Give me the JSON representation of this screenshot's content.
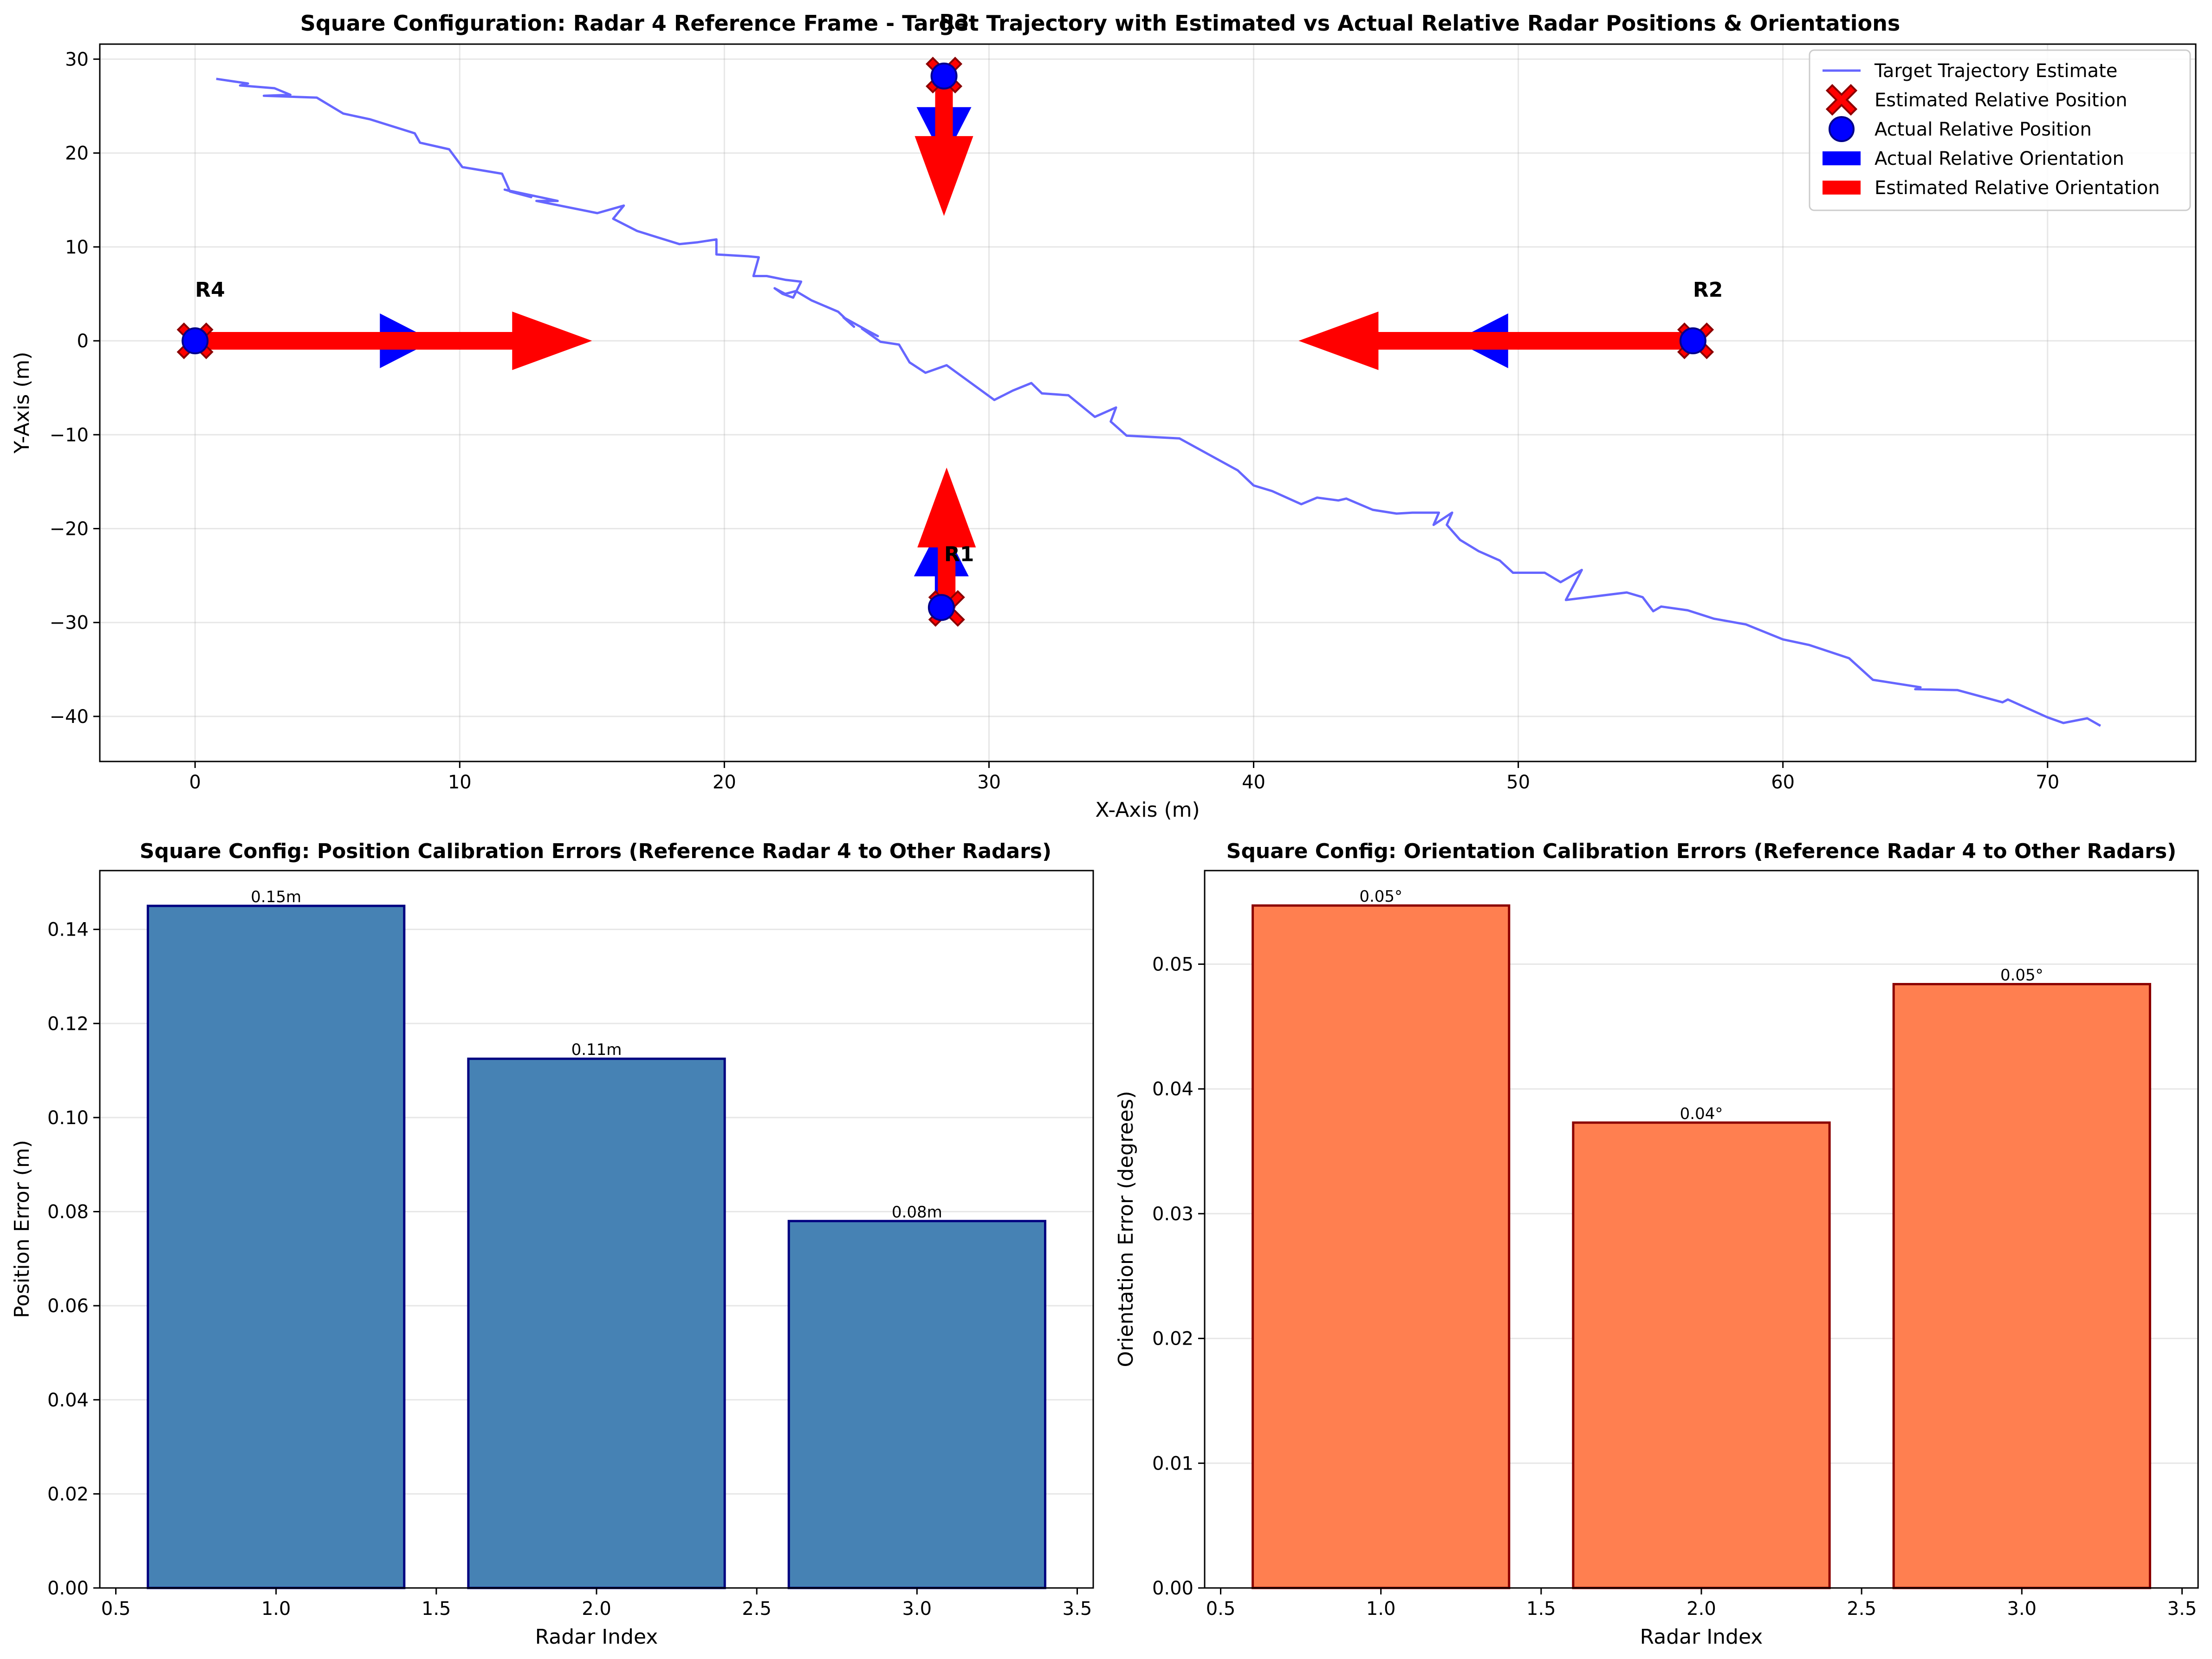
{
  "chart_data": [
    {
      "type": "line",
      "title": "Square Configuration: Radar 4 Reference Frame - Target Trajectory with Estimated vs Actual Relative Radar Positions & Orientations",
      "xlabel": "X-Axis (m)",
      "ylabel": "Y-Axis (m)",
      "xlim": [
        -3.6,
        75.6
      ],
      "ylim": [
        -44.8,
        31.6
      ],
      "xticks": [
        "0",
        "10",
        "20",
        "30",
        "40",
        "50",
        "60",
        "70"
      ],
      "xtick_values": [
        0,
        10,
        20,
        30,
        40,
        50,
        60,
        70
      ],
      "yticks": [
        "−40",
        "−30",
        "−20",
        "−10",
        "0",
        "10",
        "20",
        "30"
      ],
      "ytick_values": [
        -40,
        -30,
        -20,
        -10,
        0,
        10,
        20,
        30
      ],
      "grid": true,
      "legend_position": "top-right",
      "legend": [
        {
          "label": "Target Trajectory Estimate",
          "kind": "line",
          "color": "#6666ff"
        },
        {
          "label": "Estimated Relative Position",
          "kind": "cross",
          "color": "#ff0000"
        },
        {
          "label": "Actual Relative Position",
          "kind": "circle",
          "color": "#0000ff"
        },
        {
          "label": "Actual Relative Orientation",
          "kind": "patch",
          "color": "#0000ff"
        },
        {
          "label": "Estimated Relative Orientation",
          "kind": "patch",
          "color": "#ff0000"
        }
      ],
      "trajectory": {
        "color": "#6666ff",
        "x": [
          0.8,
          2.0,
          1.7,
          3.0,
          3.6,
          2.6,
          4.6,
          5.6,
          6.6,
          8.3,
          8.5,
          9.6,
          10.1,
          11.6,
          11.9,
          12.7,
          11.7,
          13.7,
          12.9,
          15.2,
          16.2,
          15.8,
          16.7,
          17.5,
          18.3,
          19.0,
          19.7,
          19.7,
          20.9,
          21.3,
          21.1,
          21.6,
          22.3,
          22.9,
          22.6,
          22.2,
          21.9,
          22.3,
          22.7,
          23.3,
          24.3,
          24.9,
          24.5,
          25.4,
          25.8,
          25.2,
          25.9,
          26.6,
          27.0,
          27.6,
          28.4,
          30.2,
          30.9,
          31.6,
          32.0,
          33.0,
          34.0,
          34.8,
          34.6,
          35.2,
          37.2,
          39.4,
          40.0,
          40.7,
          41.8,
          42.4,
          43.2,
          43.5,
          44.5,
          45.4,
          46.0,
          47.0,
          46.8,
          47.5,
          47.3,
          47.8,
          48.5,
          49.3,
          49.8,
          51.0,
          51.6,
          52.4,
          51.8,
          54.1,
          54.7,
          55.1,
          55.4,
          56.4,
          57.4,
          58.6,
          60.0,
          61.0,
          62.5,
          63.4,
          65.2,
          65.0,
          66.6,
          68.3,
          68.5,
          70.0,
          70.6,
          71.5,
          72.0
        ],
        "y": [
          27.9,
          27.4,
          27.2,
          26.9,
          26.2,
          26.1,
          25.9,
          24.2,
          23.6,
          22.1,
          21.1,
          20.4,
          18.5,
          17.8,
          15.9,
          15.3,
          16.1,
          14.9,
          14.9,
          13.6,
          14.4,
          13.0,
          11.7,
          11.0,
          10.3,
          10.5,
          10.8,
          9.2,
          9.0,
          8.9,
          6.9,
          6.9,
          6.5,
          6.3,
          4.6,
          5.0,
          5.6,
          5.0,
          5.3,
          4.3,
          3.1,
          1.5,
          2.5,
          1.1,
          0.5,
          1.3,
          -0.1,
          -0.4,
          -2.3,
          -3.4,
          -2.6,
          -6.3,
          -5.3,
          -4.5,
          -5.6,
          -5.8,
          -8.1,
          -7.1,
          -8.6,
          -10.1,
          -10.4,
          -13.8,
          -15.4,
          -16.0,
          -17.4,
          -16.7,
          -17.0,
          -16.8,
          -18.0,
          -18.4,
          -18.3,
          -18.3,
          -19.6,
          -18.3,
          -19.6,
          -21.2,
          -22.4,
          -23.4,
          -24.7,
          -24.7,
          -25.7,
          -24.4,
          -27.6,
          -26.8,
          -27.3,
          -28.8,
          -28.3,
          -28.7,
          -29.6,
          -30.2,
          -31.8,
          -32.4,
          -33.8,
          -36.1,
          -36.9,
          -37.1,
          -37.2,
          -38.5,
          -38.2,
          -40.1,
          -40.7,
          -40.2,
          -41.0
        ]
      },
      "radars": [
        {
          "label": "R1",
          "actual": [
            28.2,
            -28.4
          ],
          "estimated": [
            28.4,
            -28.5
          ],
          "actual_dir_deg": 90,
          "estimated_dir_deg": 90
        },
        {
          "label": "R2",
          "actual": [
            56.6,
            0.0
          ],
          "estimated": [
            56.7,
            0.0
          ],
          "actual_dir_deg": 180,
          "estimated_dir_deg": 180
        },
        {
          "label": "R3",
          "actual": [
            28.3,
            28.2
          ],
          "estimated": [
            28.3,
            28.3
          ],
          "actual_dir_deg": 270,
          "estimated_dir_deg": 270
        },
        {
          "label": "R4",
          "actual": [
            0.0,
            0.0
          ],
          "estimated": [
            0.0,
            0.0
          ],
          "actual_dir_deg": 0,
          "estimated_dir_deg": 0
        }
      ],
      "colors": {
        "actual": "#0000ff",
        "estimated": "#ff0000",
        "marker_edge": "#8b0000"
      }
    },
    {
      "type": "bar",
      "title": "Square Config: Position Calibration Errors (Reference Radar 4 to Other Radars)",
      "xlabel": "Radar Index",
      "ylabel": "Position Error (m)",
      "x": [
        1,
        2,
        3
      ],
      "values": [
        0.145,
        0.1125,
        0.078
      ],
      "data_labels": [
        "0.15m",
        "0.11m",
        "0.08m"
      ],
      "xlim": [
        0.45,
        3.55
      ],
      "ylim": [
        0,
        0.1525
      ],
      "xticks": [
        "0.5",
        "1.0",
        "1.5",
        "2.0",
        "2.5",
        "3.0",
        "3.5"
      ],
      "xtick_values": [
        0.5,
        1.0,
        1.5,
        2.0,
        2.5,
        3.0,
        3.5
      ],
      "yticks": [
        "0.00",
        "0.02",
        "0.04",
        "0.06",
        "0.08",
        "0.10",
        "0.12",
        "0.14"
      ],
      "ytick_values": [
        0,
        0.02,
        0.04,
        0.06,
        0.08,
        0.1,
        0.12,
        0.14
      ],
      "grid": true,
      "color": "#4682b4",
      "edge_color": "#000080"
    },
    {
      "type": "bar",
      "title": "Square Config: Orientation Calibration Errors (Reference Radar 4 to Other Radars)",
      "xlabel": "Radar Index",
      "ylabel": "Orientation Error (degrees)",
      "x": [
        1,
        2,
        3
      ],
      "values": [
        0.0547,
        0.0373,
        0.0484
      ],
      "data_labels": [
        "0.05°",
        "0.04°",
        "0.05°"
      ],
      "xlim": [
        0.45,
        3.55
      ],
      "ylim": [
        0,
        0.0575
      ],
      "xticks": [
        "0.5",
        "1.0",
        "1.5",
        "2.0",
        "2.5",
        "3.0",
        "3.5"
      ],
      "xtick_values": [
        0.5,
        1.0,
        1.5,
        2.0,
        2.5,
        3.0,
        3.5
      ],
      "yticks": [
        "0.00",
        "0.01",
        "0.02",
        "0.03",
        "0.04",
        "0.05"
      ],
      "ytick_values": [
        0,
        0.01,
        0.02,
        0.03,
        0.04,
        0.05
      ],
      "grid": true,
      "color": "#ff7f50",
      "edge_color": "#8b0000"
    }
  ]
}
